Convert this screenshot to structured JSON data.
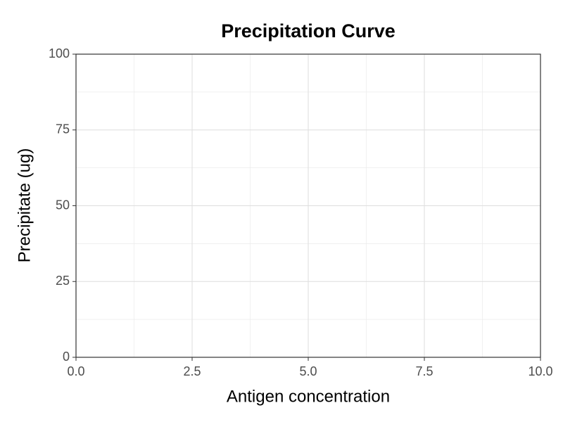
{
  "chart_data": {
    "type": "line",
    "title": "Precipitation Curve",
    "xlabel": "Antigen concentration",
    "ylabel": "Precipitate (ug)",
    "xlim": [
      0,
      10
    ],
    "xticks": [
      {
        "value": 0,
        "label": "0.0"
      },
      2.5,
      {
        "value": 5,
        "label": "5.0"
      },
      7.5,
      {
        "value": 10,
        "label": "10.0"
      }
    ],
    "ylim": [
      0,
      100
    ],
    "yticks": [
      0,
      25,
      50,
      75,
      100
    ],
    "grid": true,
    "minor_grid": true
  }
}
